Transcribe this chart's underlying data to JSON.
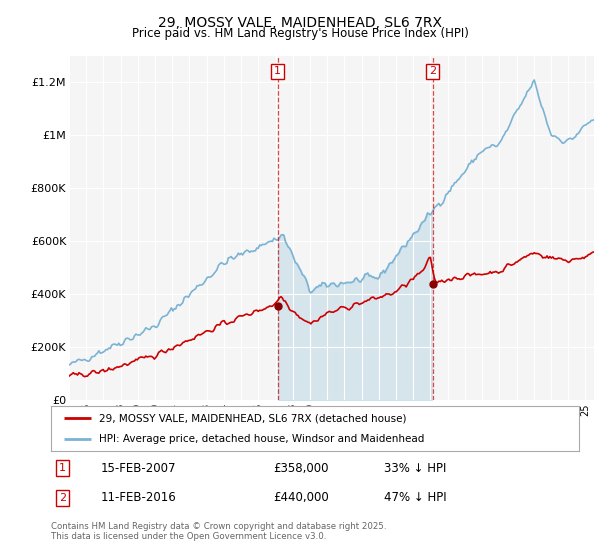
{
  "title": "29, MOSSY VALE, MAIDENHEAD, SL6 7RX",
  "subtitle": "Price paid vs. HM Land Registry's House Price Index (HPI)",
  "legend_line1": "29, MOSSY VALE, MAIDENHEAD, SL6 7RX (detached house)",
  "legend_line2": "HPI: Average price, detached house, Windsor and Maidenhead",
  "annotation1_label": "1",
  "annotation1_date": "15-FEB-2007",
  "annotation1_price": "£358,000",
  "annotation1_hpi": "33% ↓ HPI",
  "annotation2_label": "2",
  "annotation2_date": "11-FEB-2016",
  "annotation2_price": "£440,000",
  "annotation2_hpi": "47% ↓ HPI",
  "copyright": "Contains HM Land Registry data © Crown copyright and database right 2025.\nThis data is licensed under the Open Government Licence v3.0.",
  "hpi_color": "#7ab3d4",
  "hpi_fill_color": "#c8dff0",
  "price_color": "#cc0000",
  "marker_color": "#880000",
  "annotation_box_color": "#cc0000",
  "vline_color": "#cc0000",
  "background_color": "#ffffff",
  "plot_bg_color": "#f5f5f5",
  "grid_color": "#ffffff",
  "ylim": [
    0,
    1300000
  ],
  "yticks": [
    0,
    200000,
    400000,
    600000,
    800000,
    1000000,
    1200000
  ],
  "ytick_labels": [
    "£0",
    "£200K",
    "£400K",
    "£600K",
    "£800K",
    "£1M",
    "£1.2M"
  ],
  "sale1_year": 2007.12,
  "sale1_price": 358000,
  "sale2_year": 2016.12,
  "sale2_price": 440000,
  "xmin": 1995.0,
  "xmax": 2025.5
}
